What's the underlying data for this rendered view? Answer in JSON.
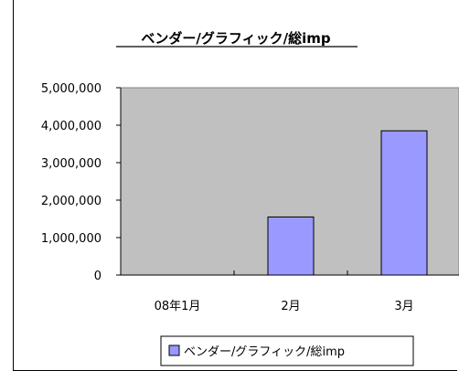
{
  "chart_data": {
    "type": "bar",
    "title": "ベンダー/グラフィック/総imp",
    "categories": [
      "08年1月",
      "2月",
      "3月"
    ],
    "series": [
      {
        "name": "ベンダー/グラフィック/総imp",
        "values": [
          0,
          1550000,
          3850000
        ]
      }
    ],
    "ylim": [
      0,
      5000000
    ],
    "yticks": [
      "0",
      "1,000,000",
      "2,000,000",
      "3,000,000",
      "4,000,000",
      "5,000,000"
    ],
    "xlabel": "",
    "ylabel": "",
    "grid": false,
    "legend_position": "bottom",
    "colors": {
      "plot_area": "#c0c0c0",
      "bar_fill": "#9999ff",
      "bar_stroke": "#000000"
    }
  }
}
